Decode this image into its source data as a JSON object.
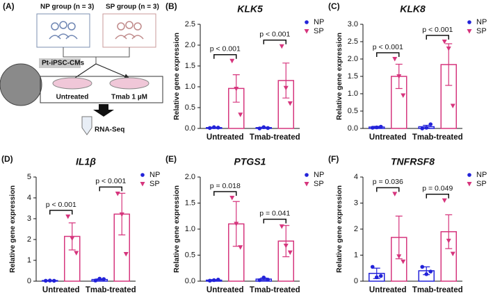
{
  "panel_a": {
    "label": "(A)",
    "np_group": "NP group (n = 3)",
    "sp_group": "SP group (n = 3)",
    "cells": "Pt-iPSC-CMs",
    "untreated": "Untreated",
    "tmab": "Tmab 1 µM",
    "rnaseq": "RNA-Seq"
  },
  "chart_data": [
    {
      "type": "bar",
      "panel_label": "(B)",
      "title": "KLK5",
      "y_label": "Relative gene expression",
      "categories": [
        "Untreated",
        "Tmab-treated"
      ],
      "ylim": [
        0,
        2.5
      ],
      "yticks": [
        {
          "value": 0,
          "label": "0.0"
        },
        0.5,
        {
          "value": 1,
          "label": "1.0"
        },
        1.5,
        {
          "value": 2,
          "label": "2.0"
        },
        2.5
      ],
      "series": [
        {
          "name": "NP",
          "color": "#2323d9",
          "values": [
            0.02,
            0.02
          ],
          "errors": [
            0.01,
            0.01
          ],
          "points": [
            [
              0.01,
              0.03,
              0.02
            ],
            [
              0.0,
              0.03,
              0.01
            ]
          ]
        },
        {
          "name": "SP",
          "color": "#d6357d",
          "values": [
            0.96,
            1.15
          ],
          "errors": [
            0.33,
            0.42
          ],
          "points": [
            [
              1.62,
              0.95,
              0.33
            ],
            [
              1.97,
              0.97,
              0.6
            ]
          ]
        }
      ],
      "annotations": [
        "p < 0.001",
        "p < 0.001"
      ]
    },
    {
      "type": "bar",
      "panel_label": "(C)",
      "title": "KLK8",
      "y_label": "Relative gene expression",
      "categories": [
        "Untreated",
        "Tmab-treated"
      ],
      "ylim": [
        0,
        3
      ],
      "yticks": [
        {
          "value": 0,
          "label": "0.0"
        },
        0.5,
        {
          "value": 1,
          "label": "1.0"
        },
        1.5,
        {
          "value": 2,
          "label": "2.0"
        },
        2.5,
        {
          "value": 3,
          "label": "3.0"
        }
      ],
      "series": [
        {
          "name": "NP",
          "color": "#2323d9",
          "values": [
            0.04,
            0.05
          ],
          "errors": [
            0.02,
            0.04
          ],
          "points": [
            [
              0.02,
              0.03,
              0.05
            ],
            [
              0.0,
              0.02,
              0.12
            ]
          ]
        },
        {
          "name": "SP",
          "color": "#d6357d",
          "values": [
            1.5,
            1.84
          ],
          "errors": [
            0.35,
            0.6
          ],
          "points": [
            [
              2.0,
              1.5,
              0.95
            ],
            [
              2.5,
              2.3,
              0.65
            ]
          ]
        }
      ],
      "annotations": [
        "p < 0.001",
        "p < 0.001"
      ]
    },
    {
      "type": "bar",
      "panel_label": "(D)",
      "title": "IL1β",
      "y_label": "Relative gene expression",
      "categories": [
        "Untreated",
        "Tmab-treated"
      ],
      "ylim": [
        0,
        5
      ],
      "yticks": [
        0,
        1,
        2,
        3,
        4,
        5
      ],
      "series": [
        {
          "name": "NP",
          "color": "#2323d9",
          "values": [
            0.03,
            0.08
          ],
          "errors": [
            0.01,
            0.03
          ],
          "points": [
            [
              0.02,
              0.03,
              0.02
            ],
            [
              0.03,
              0.12,
              0.1
            ]
          ]
        },
        {
          "name": "SP",
          "color": "#d6357d",
          "values": [
            2.15,
            3.22
          ],
          "errors": [
            0.65,
            1.0
          ],
          "points": [
            [
              3.1,
              2.05,
              1.35
            ],
            [
              4.2,
              3.2,
              1.3
            ]
          ]
        }
      ],
      "annotations": [
        "p < 0.001",
        "p < 0.001"
      ]
    },
    {
      "type": "bar",
      "panel_label": "(E)",
      "title": "PTGS1",
      "y_label": "Relative gene expression",
      "categories": [
        "Untreated",
        "Tmab-treated"
      ],
      "ylim": [
        0,
        2
      ],
      "yticks": [
        {
          "value": 0,
          "label": "0.0"
        },
        0.5,
        {
          "value": 1,
          "label": "1.0"
        },
        1.5,
        {
          "value": 2,
          "label": "2.0"
        }
      ],
      "series": [
        {
          "name": "NP",
          "color": "#2323d9",
          "values": [
            0.02,
            0.04
          ],
          "errors": [
            0.01,
            0.02
          ],
          "points": [
            [
              0.01,
              0.02,
              0.03
            ],
            [
              0.02,
              0.07,
              0.03
            ]
          ]
        },
        {
          "name": "SP",
          "color": "#d6357d",
          "values": [
            1.1,
            0.77
          ],
          "errors": [
            0.43,
            0.3
          ],
          "points": [
            [
              1.6,
              1.1,
              0.65
            ],
            [
              1.05,
              0.68,
              0.55
            ]
          ]
        }
      ],
      "annotations": [
        "p = 0.018",
        "p = 0.041"
      ]
    },
    {
      "type": "bar",
      "panel_label": "(F)",
      "title": "TNFRSF8",
      "y_label": "Relative gene expression",
      "categories": [
        "Untreated",
        "Tmab-treated"
      ],
      "ylim": [
        0,
        4
      ],
      "yticks": [
        0,
        1,
        2,
        3,
        4
      ],
      "series": [
        {
          "name": "NP",
          "color": "#2323d9",
          "values": [
            0.3,
            0.4
          ],
          "errors": [
            0.2,
            0.15
          ],
          "points": [
            [
              0.55,
              0.15,
              0.2
            ],
            [
              0.55,
              0.27,
              0.37
            ]
          ]
        },
        {
          "name": "SP",
          "color": "#d6357d",
          "values": [
            1.68,
            1.9
          ],
          "errors": [
            0.82,
            0.65
          ],
          "points": [
            [
              3.35,
              0.95,
              0.75
            ],
            [
              3.1,
              1.55,
              1.05
            ]
          ]
        }
      ],
      "annotations": [
        "p = 0.036",
        "p = 0.049"
      ]
    }
  ]
}
